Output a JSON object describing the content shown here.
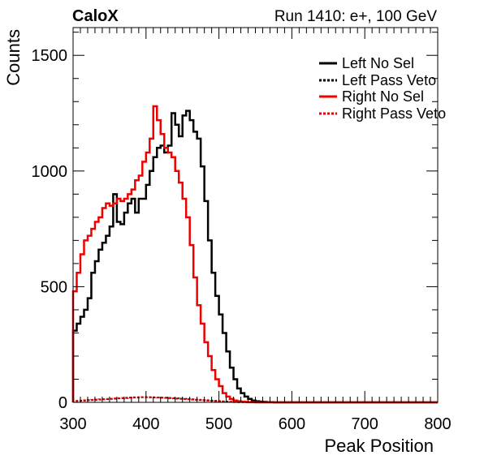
{
  "header": {
    "experiment": "CaloX",
    "run_info": "Run 1410: e+, 100 GeV"
  },
  "chart_data": {
    "type": "line",
    "style": "step-histogram",
    "title": "Run 1410: e+, 100 GeV",
    "xlabel": "Peak Position",
    "ylabel": "Counts",
    "xlim": [
      300,
      800
    ],
    "ylim": [
      0,
      1620
    ],
    "x_ticks": [
      300,
      400,
      500,
      600,
      700,
      800
    ],
    "y_ticks": [
      0,
      500,
      1000,
      1500
    ],
    "bin_width": 5,
    "bins_start": 300,
    "legend_position": "top-right",
    "grid": false,
    "series": [
      {
        "name": "Left No Sel",
        "color": "#000000",
        "dash": "solid",
        "values": [
          310,
          340,
          370,
          400,
          450,
          560,
          610,
          660,
          690,
          720,
          760,
          900,
          780,
          770,
          820,
          860,
          880,
          820,
          880,
          880,
          940,
          1000,
          1060,
          1100,
          1110,
          1080,
          1110,
          1250,
          1200,
          1150,
          1240,
          1260,
          1220,
          1170,
          1140,
          1020,
          870,
          700,
          560,
          460,
          380,
          300,
          220,
          150,
          100,
          60,
          40,
          25,
          15,
          8,
          5,
          3,
          2,
          1,
          1,
          0,
          0,
          0,
          0,
          0,
          0,
          0,
          0,
          0,
          0,
          0,
          0,
          0,
          0,
          0,
          0,
          0,
          0,
          0,
          0,
          0,
          0,
          0,
          0,
          0,
          0,
          0,
          0,
          0,
          0,
          0,
          0,
          0,
          0,
          0,
          0,
          0,
          0,
          0,
          0,
          0,
          0,
          0,
          0,
          0
        ]
      },
      {
        "name": "Left Pass Veto",
        "color": "#000000",
        "dash": "dotted",
        "values": [
          5,
          6,
          7,
          8,
          9,
          10,
          11,
          12,
          13,
          14,
          15,
          16,
          17,
          18,
          19,
          20,
          21,
          21,
          22,
          22,
          22,
          22,
          21,
          21,
          20,
          20,
          19,
          18,
          17,
          16,
          15,
          14,
          13,
          12,
          11,
          10,
          9,
          8,
          7,
          6,
          5,
          4,
          3,
          2,
          2,
          1,
          1,
          1,
          0,
          0,
          0,
          0,
          0,
          0,
          0,
          0,
          0,
          0,
          0,
          0,
          0,
          0,
          0,
          0,
          0,
          0,
          0,
          0,
          0,
          0,
          0,
          0,
          0,
          0,
          0,
          0,
          0,
          0,
          0,
          0,
          0,
          0,
          0,
          0,
          0,
          0,
          0,
          0,
          0,
          0,
          0,
          0,
          0,
          0,
          0,
          0,
          0,
          0,
          0,
          0
        ]
      },
      {
        "name": "Right No Sel",
        "color": "#ee0000",
        "dash": "solid",
        "values": [
          480,
          560,
          640,
          700,
          720,
          750,
          780,
          800,
          840,
          860,
          850,
          860,
          880,
          870,
          880,
          900,
          920,
          960,
          980,
          1040,
          1080,
          1140,
          1280,
          1220,
          1160,
          1100,
          1080,
          1060,
          1000,
          950,
          880,
          800,
          680,
          540,
          420,
          340,
          260,
          200,
          140,
          100,
          70,
          40,
          25,
          15,
          8,
          5,
          3,
          2,
          1,
          1,
          0,
          0,
          0,
          0,
          0,
          0,
          0,
          0,
          0,
          0,
          0,
          0,
          0,
          0,
          0,
          0,
          0,
          0,
          0,
          0,
          0,
          0,
          0,
          0,
          0,
          0,
          0,
          0,
          0,
          0,
          0,
          0,
          0,
          0,
          0,
          0,
          0,
          0,
          0,
          0,
          0,
          0,
          0,
          0,
          0,
          0,
          0,
          0,
          0,
          0
        ]
      },
      {
        "name": "Right Pass Veto",
        "color": "#ee0000",
        "dash": "dotted",
        "values": [
          6,
          7,
          8,
          9,
          10,
          11,
          12,
          13,
          14,
          15,
          16,
          17,
          18,
          19,
          20,
          21,
          22,
          22,
          23,
          23,
          23,
          22,
          22,
          21,
          20,
          19,
          18,
          17,
          16,
          15,
          14,
          13,
          12,
          11,
          10,
          9,
          8,
          7,
          6,
          5,
          4,
          3,
          2,
          2,
          1,
          1,
          1,
          0,
          0,
          0,
          0,
          0,
          0,
          0,
          0,
          0,
          0,
          0,
          0,
          0,
          0,
          0,
          0,
          0,
          0,
          0,
          0,
          0,
          0,
          0,
          0,
          0,
          0,
          0,
          0,
          0,
          0,
          0,
          0,
          0,
          0,
          0,
          0,
          0,
          0,
          0,
          0,
          0,
          0,
          0,
          0,
          0,
          0,
          0,
          0,
          0,
          0,
          0,
          0,
          0
        ]
      }
    ]
  }
}
